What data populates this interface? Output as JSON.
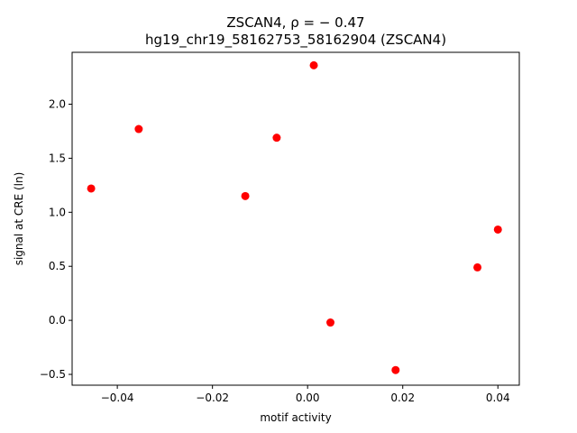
{
  "chart_data": {
    "type": "scatter",
    "title_line1": "ZSCAN4, ρ = − 0.47",
    "title_line2": "hg19_chr19_58162753_58162904 (ZSCAN4)",
    "xlabel": "motif activity",
    "ylabel": "signal at CRE (ln)",
    "xlim": [
      -0.0495,
      0.0445
    ],
    "ylim": [
      -0.6,
      2.48
    ],
    "xticks": [
      -0.04,
      -0.02,
      0.0,
      0.02,
      0.04
    ],
    "xtick_labels": [
      "−0.04",
      "−0.02",
      "0.00",
      "0.02",
      "0.04"
    ],
    "yticks": [
      -0.5,
      0.0,
      0.5,
      1.0,
      1.5,
      2.0
    ],
    "ytick_labels": [
      "−0.5",
      "0.0",
      "0.5",
      "1.0",
      "1.5",
      "2.0"
    ],
    "grid": false,
    "marker_color": "#ff0000",
    "points": [
      {
        "x": -0.0455,
        "y": 1.22
      },
      {
        "x": -0.0355,
        "y": 1.77
      },
      {
        "x": -0.0131,
        "y": 1.15
      },
      {
        "x": -0.0065,
        "y": 1.69
      },
      {
        "x": 0.0013,
        "y": 2.36
      },
      {
        "x": 0.0048,
        "y": -0.02
      },
      {
        "x": 0.0185,
        "y": -0.46
      },
      {
        "x": 0.0357,
        "y": 0.49
      },
      {
        "x": 0.04,
        "y": 0.84
      }
    ]
  }
}
